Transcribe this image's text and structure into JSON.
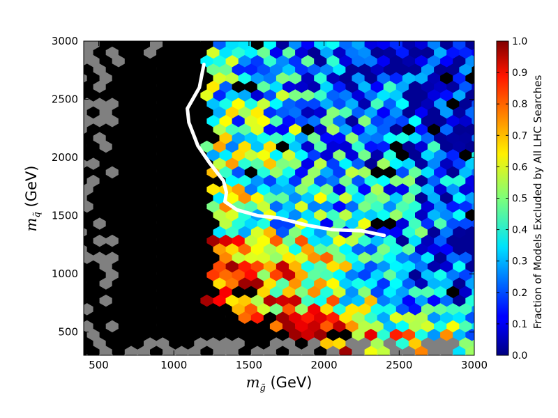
{
  "chart_data": {
    "type": "heatmap",
    "title": "",
    "xlabel": "m",
    "xlabel_sub": "g̃",
    "xlabel_unit": " (GeV)",
    "ylabel": "m",
    "ylabel_sub": "q̃",
    "ylabel_unit": " (GeV)",
    "xlim": [
      400,
      3000
    ],
    "ylim": [
      300,
      3000
    ],
    "x_ticks": [
      500,
      1000,
      1500,
      2000,
      2500,
      3000
    ],
    "y_ticks": [
      500,
      1000,
      1500,
      2000,
      2500,
      3000
    ],
    "colorbar": {
      "label": "Fraction of Models Excluded by All LHC Searches",
      "range": [
        0.0,
        1.0
      ],
      "ticks": [
        "0.0",
        "0.1",
        "0.2",
        "0.3",
        "0.4",
        "0.5",
        "0.6",
        "0.7",
        "0.8",
        "0.9",
        "1.0"
      ],
      "colormap": "jet"
    },
    "cell_hex": {
      "bin_width_gev": 84,
      "bin_height_gev": 98
    },
    "empty_bin_color": "#808080",
    "full_exclusion_color": "#000000",
    "exclusion_line": {
      "color": "#ffffff",
      "points": [
        [
          1200,
          2800
        ],
        [
          1170,
          2600
        ],
        [
          1090,
          2420
        ],
        [
          1100,
          2300
        ],
        [
          1160,
          2100
        ],
        [
          1240,
          1950
        ],
        [
          1330,
          1800
        ],
        [
          1350,
          1700
        ],
        [
          1340,
          1620
        ],
        [
          1420,
          1550
        ],
        [
          1560,
          1500
        ],
        [
          1700,
          1480
        ],
        [
          1880,
          1420
        ],
        [
          2050,
          1380
        ],
        [
          2250,
          1370
        ],
        [
          2400,
          1330
        ]
      ]
    }
  }
}
